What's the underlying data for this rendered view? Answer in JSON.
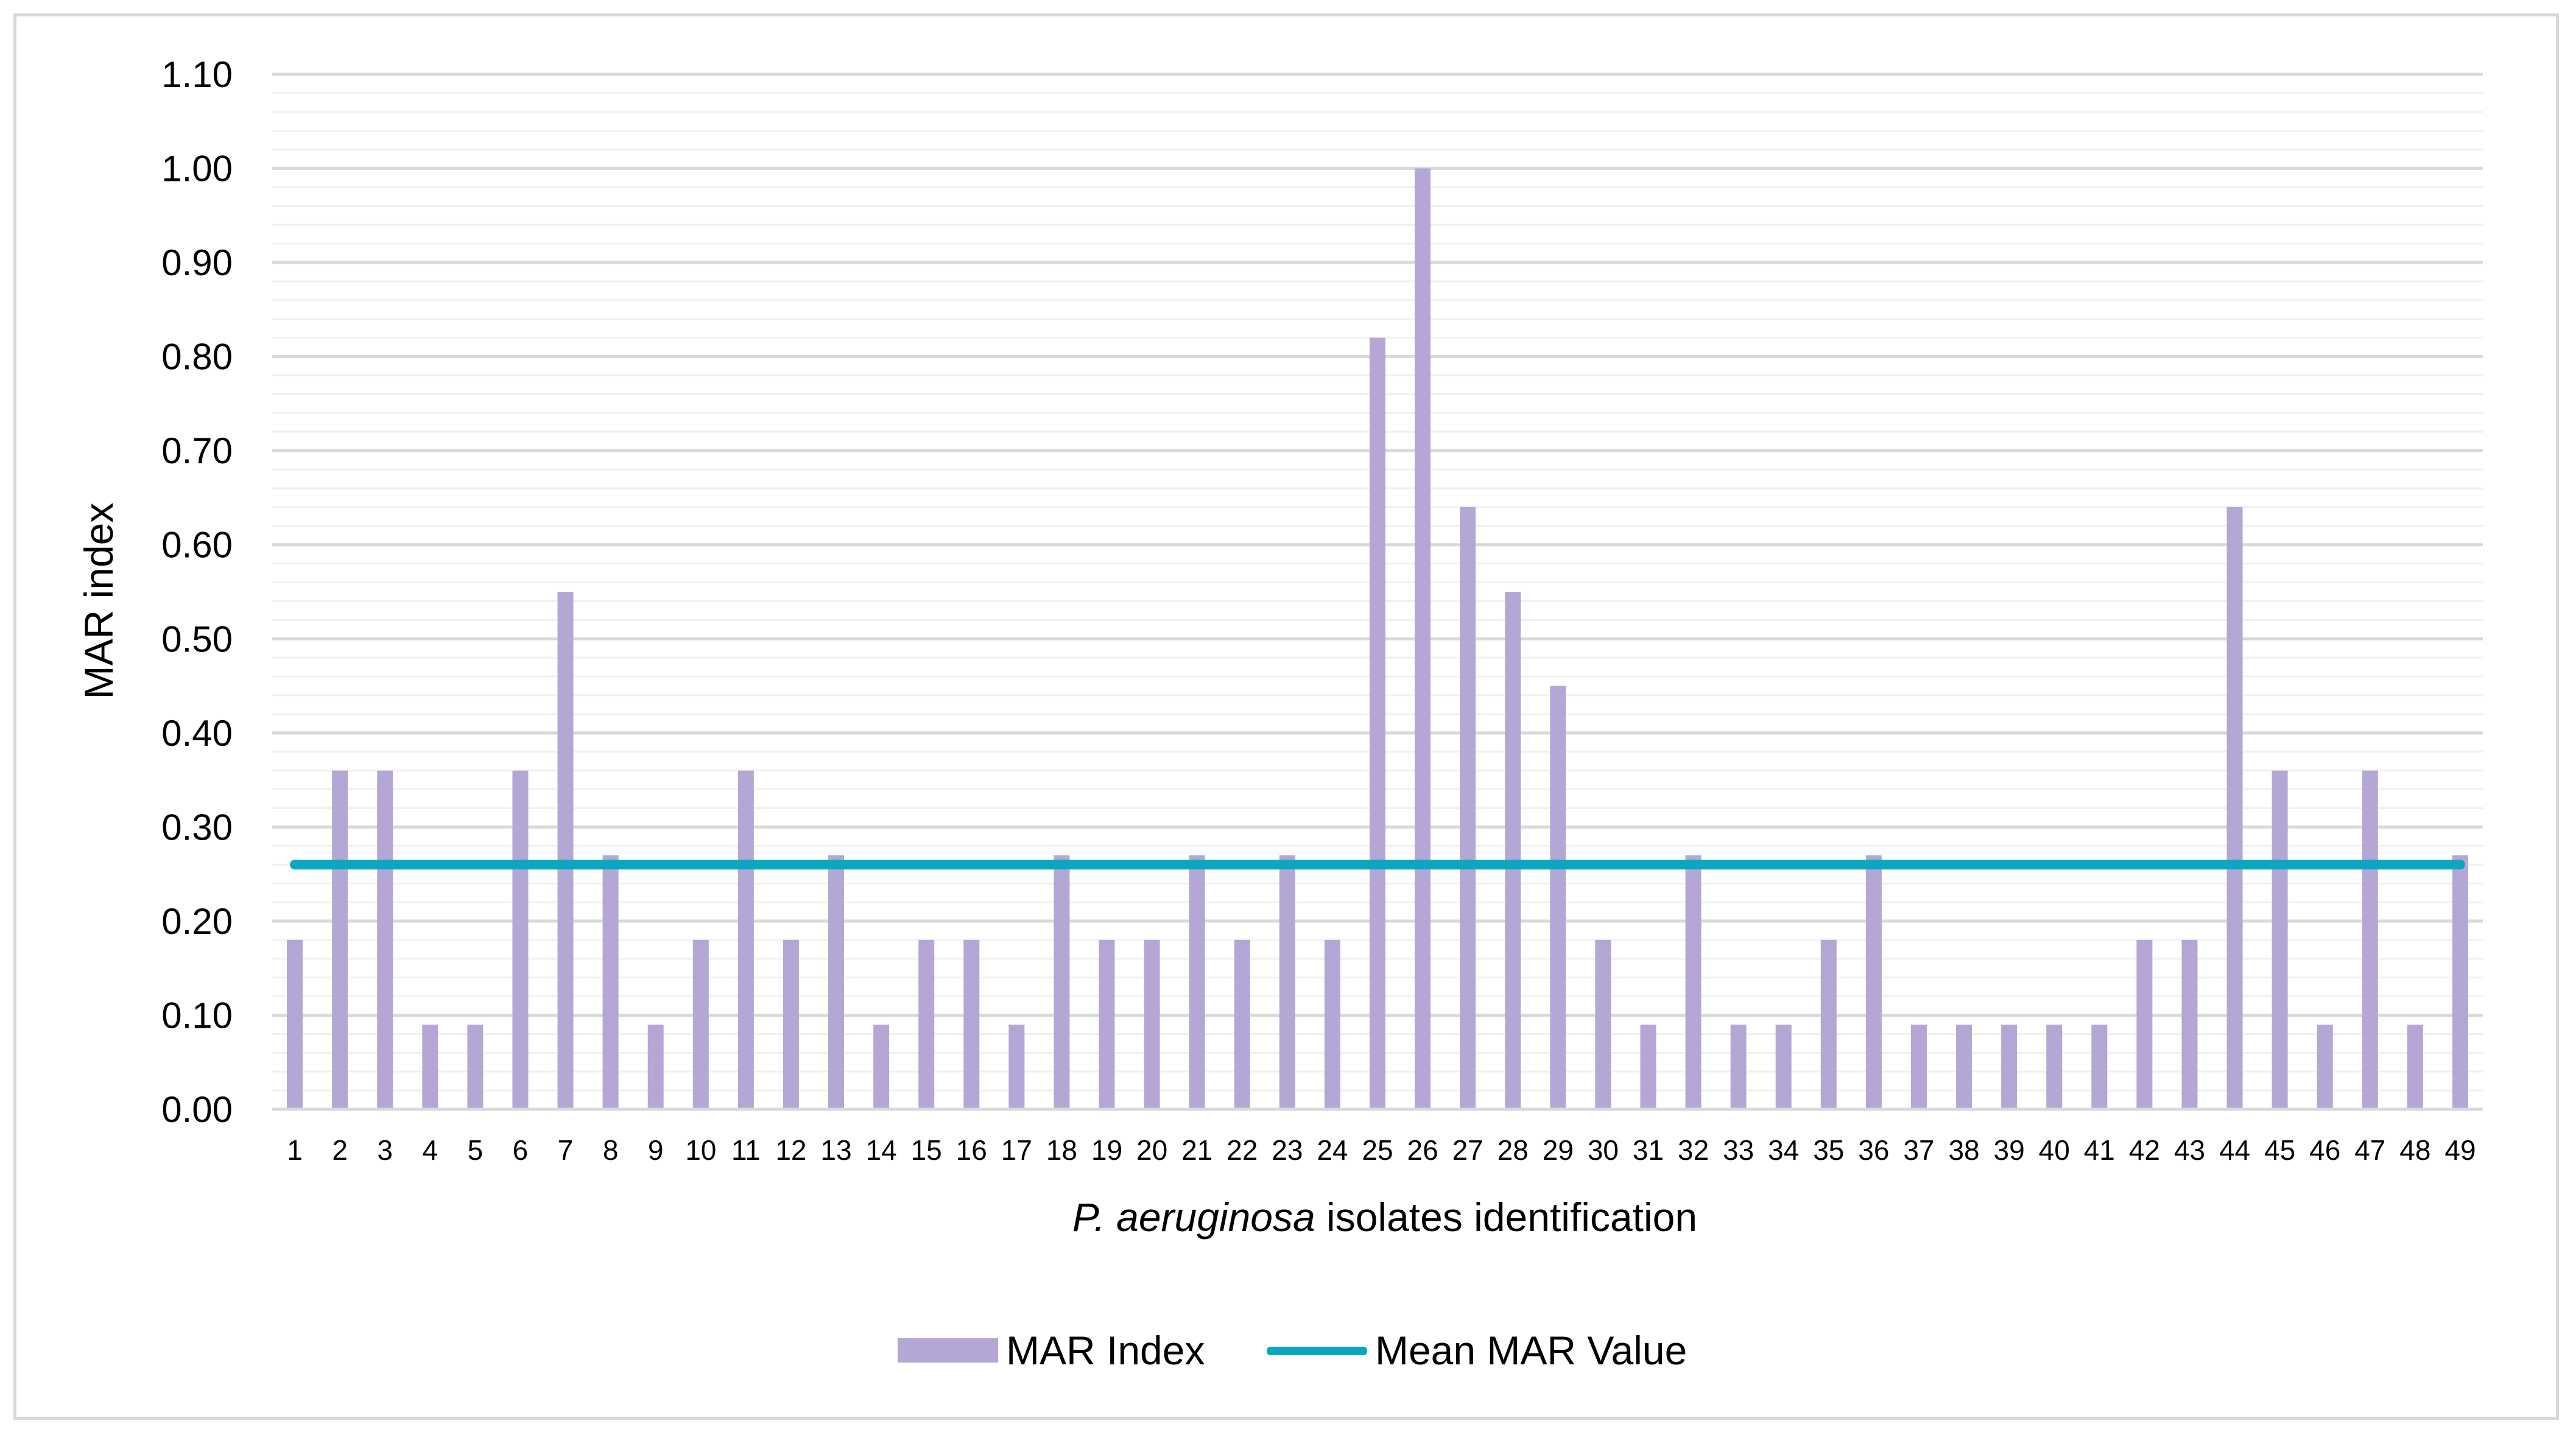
{
  "chart_data": {
    "type": "bar",
    "title": "",
    "xlabel_italic": "P. aeruginosa",
    "xlabel_rest": " isolates identification",
    "ylabel": "MAR index",
    "ylim": [
      0,
      1.1
    ],
    "ytick_step": 0.1,
    "minor_grid_step": 0.02,
    "grid": true,
    "legend_position": "bottom-center",
    "categories": [
      "1",
      "2",
      "3",
      "4",
      "5",
      "6",
      "7",
      "8",
      "9",
      "10",
      "11",
      "12",
      "13",
      "14",
      "15",
      "16",
      "17",
      "18",
      "19",
      "20",
      "21",
      "22",
      "23",
      "24",
      "25",
      "26",
      "27",
      "28",
      "29",
      "30",
      "31",
      "32",
      "33",
      "34",
      "35",
      "36",
      "37",
      "38",
      "39",
      "40",
      "41",
      "42",
      "43",
      "44",
      "45",
      "46",
      "47",
      "48",
      "49"
    ],
    "series": [
      {
        "name": "MAR Index",
        "kind": "bar",
        "color": "#b4a7d6",
        "values": [
          0.18,
          0.36,
          0.36,
          0.09,
          0.09,
          0.36,
          0.55,
          0.27,
          0.09,
          0.18,
          0.36,
          0.18,
          0.27,
          0.09,
          0.18,
          0.18,
          0.09,
          0.27,
          0.18,
          0.18,
          0.27,
          0.18,
          0.27,
          0.18,
          0.82,
          1.0,
          0.64,
          0.55,
          0.45,
          0.18,
          0.09,
          0.27,
          0.09,
          0.09,
          0.18,
          0.27,
          0.09,
          0.09,
          0.09,
          0.09,
          0.09,
          0.18,
          0.18,
          0.64,
          0.36,
          0.09,
          0.36,
          0.09,
          0.27
        ]
      },
      {
        "name": "Mean MAR Value",
        "kind": "line",
        "color": "#0ba7c1",
        "value": 0.26
      }
    ]
  }
}
